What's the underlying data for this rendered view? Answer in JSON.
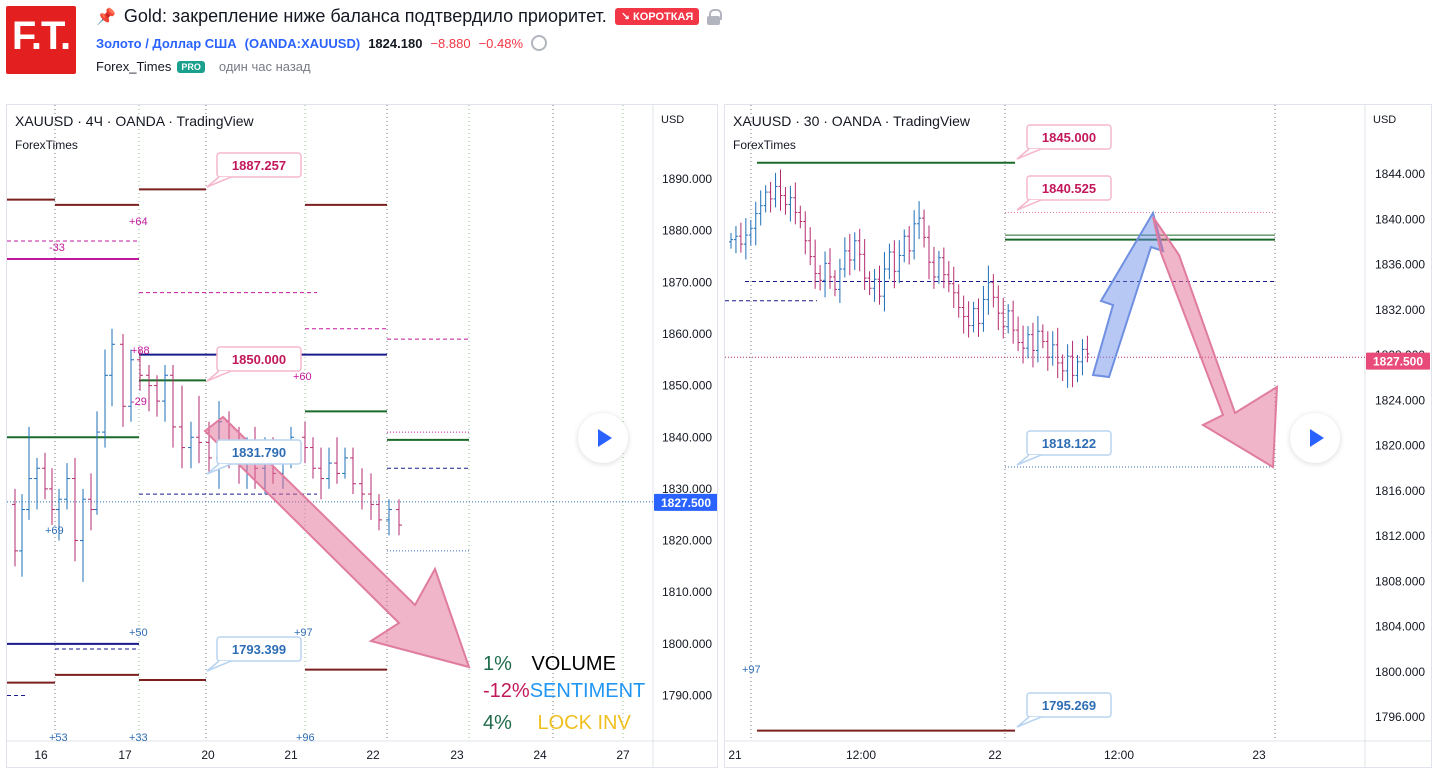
{
  "header": {
    "logo_text": "F.T.",
    "title": "Gold: закрепление ниже баланса подтвердило приоритет.",
    "badge": "↘ КОРОТКАЯ",
    "symbol_name": "Золото / Доллар США",
    "symbol_ticker": "OANDA:XAUUSD",
    "price": "1824.180",
    "change": "−8.880",
    "change_pct": "−0.48%",
    "author": "Forex_Times",
    "pro_badge": "PRO",
    "time_ago": "один час назад"
  },
  "colors": {
    "accent_blue": "#2962ff",
    "negative": "#f23645",
    "bull": "#1e6fb8",
    "bear": "#b52a6f",
    "pink_label": "#c2185b",
    "blue_label": "#2e6db4"
  },
  "chart_data": [
    {
      "type": "candlestick",
      "title": "XAUUSD · 4Ч · OANDA · TradingView",
      "subtitle": "ForexTimes",
      "axis_currency": "USD",
      "ylim": [
        1782,
        1900
      ],
      "y_ticks": [
        "1890.000",
        "1880.000",
        "1870.000",
        "1860.000",
        "1850.000",
        "1840.000",
        "1830.000",
        "1820.000",
        "1810.000",
        "1800.000",
        "1790.000"
      ],
      "x_ticks": [
        "16",
        "17",
        "20",
        "21",
        "22",
        "23",
        "24",
        "27"
      ],
      "last_price_label": "1827.500",
      "price_labels": [
        {
          "text": "1887.257",
          "value": 1887.257,
          "color": "pink"
        },
        {
          "text": "1850.000",
          "value": 1850.0,
          "color": "pink"
        },
        {
          "text": "1831.790",
          "value": 1831.79,
          "color": "blue"
        },
        {
          "text": "1793.399",
          "value": 1793.399,
          "color": "blue"
        }
      ],
      "small_labels": [
        "+64",
        "-33",
        "+88",
        "+60",
        "-29",
        "+69",
        "+50",
        "+97",
        "+53",
        "+33",
        "+96"
      ],
      "legend": [
        {
          "pct": "1%",
          "label": "VOLUME",
          "pct_color": "#1e6b4a",
          "label_color": "#000000"
        },
        {
          "pct": "-12%",
          "label": "SENTIMENT",
          "pct_color": "#c2185b",
          "label_color": "#2196f3"
        },
        {
          "pct": "4%",
          "label": "LOCK INV",
          "pct_color": "#1e6b4a",
          "label_color": "#f0c020"
        }
      ]
    },
    {
      "type": "candlestick",
      "title": "XAUUSD · 30 · OANDA · TradingView",
      "subtitle": "ForexTimes",
      "axis_currency": "USD",
      "ylim": [
        1793,
        1850
      ],
      "y_ticks": [
        "1844.000",
        "1840.000",
        "1836.000",
        "1832.000",
        "1828.000",
        "1824.000",
        "1820.000",
        "1816.000",
        "1812.000",
        "1808.000",
        "1804.000",
        "1800.000",
        "1796.000"
      ],
      "x_ticks": [
        "21",
        "12:00",
        "22",
        "12:00",
        "23"
      ],
      "last_price_label": "1827.500",
      "price_labels": [
        {
          "text": "1845.000",
          "value": 1845.0,
          "color": "pink"
        },
        {
          "text": "1840.525",
          "value": 1840.525,
          "color": "pink"
        },
        {
          "text": "1818.122",
          "value": 1818.122,
          "color": "blue"
        },
        {
          "text": "1795.269",
          "value": 1795.269,
          "color": "blue"
        }
      ],
      "small_labels": [
        "+97"
      ]
    }
  ]
}
